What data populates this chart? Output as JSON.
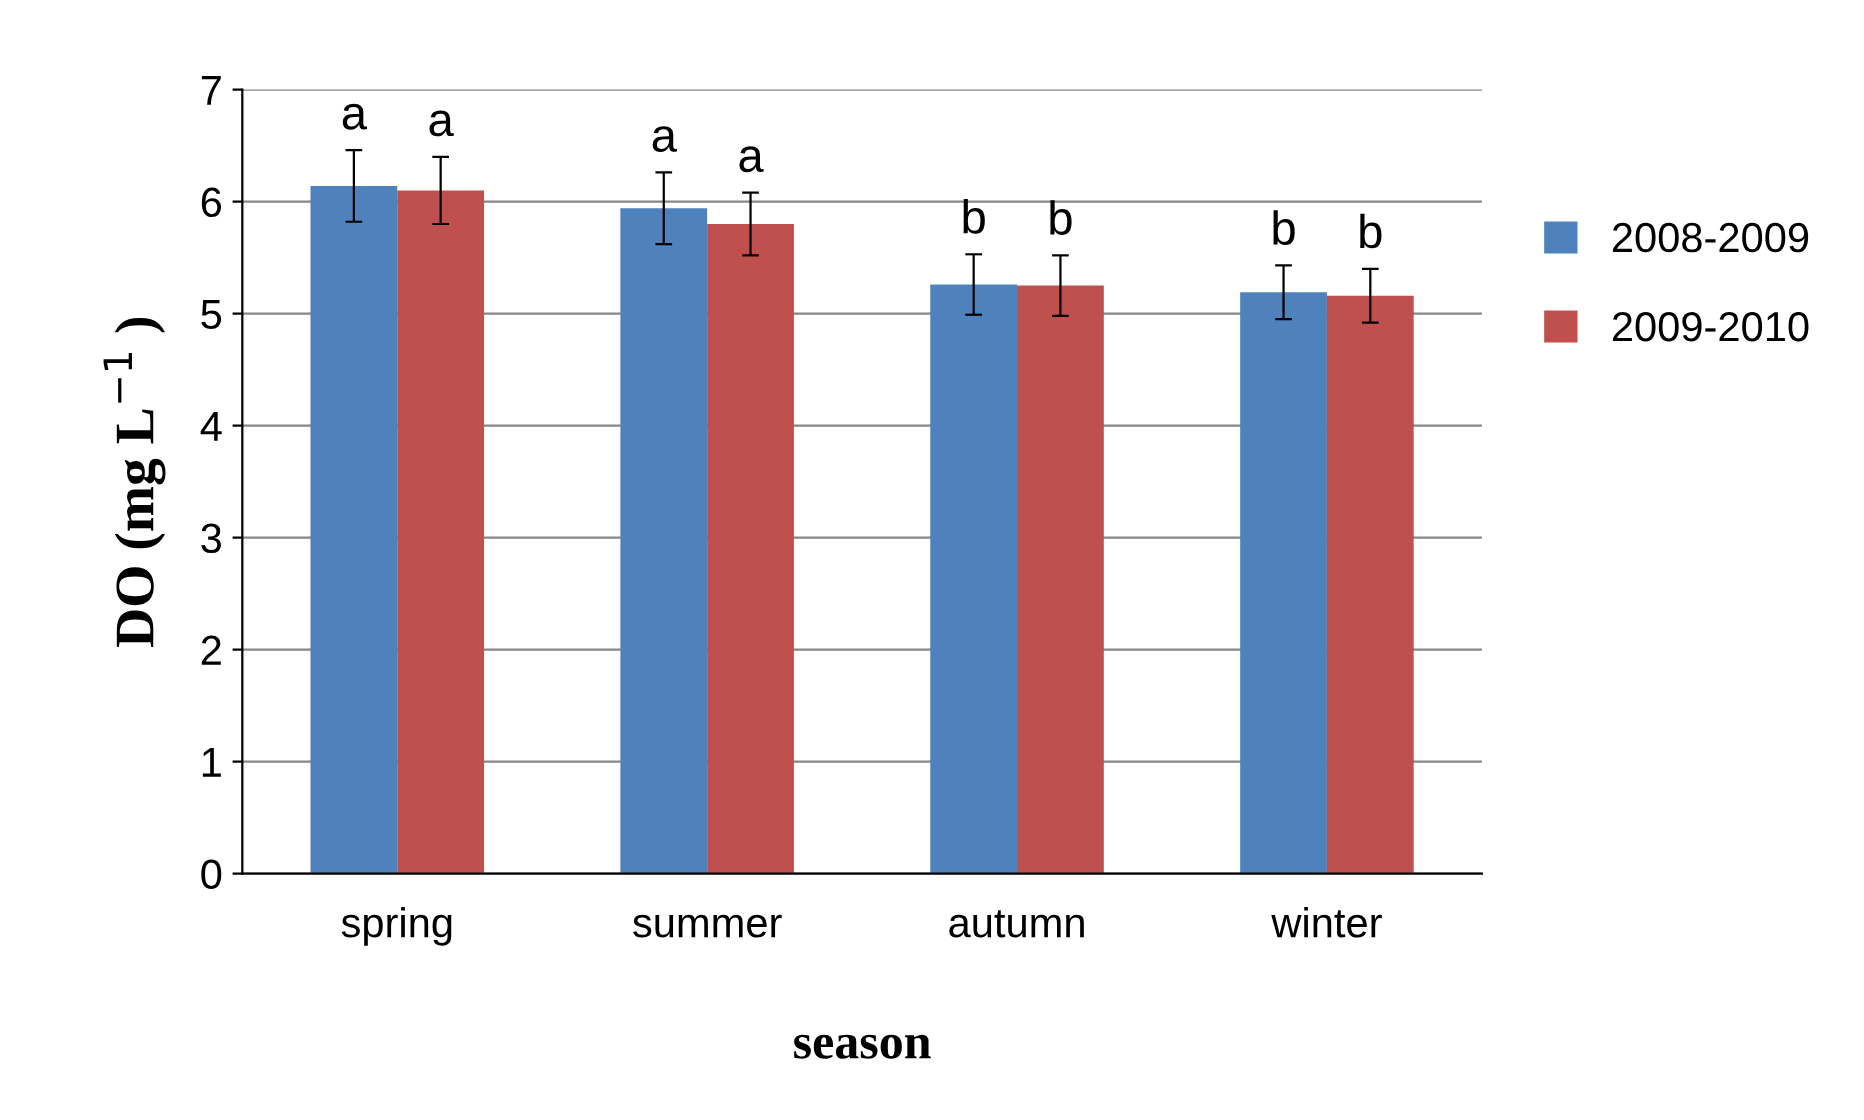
{
  "chart_data": {
    "type": "bar",
    "xlabel": "season",
    "ylabel": "DO (mg L$^{−1}$ )",
    "categories": [
      "spring",
      "summer",
      "autumn",
      "winter"
    ],
    "series": [
      {
        "name": "2008-2009",
        "color": "#4f81bd",
        "values": [
          6.14,
          5.94,
          5.26,
          5.19
        ],
        "errors": [
          0.32,
          0.32,
          0.27,
          0.24
        ]
      },
      {
        "name": "2009-2010",
        "color": "#c0504d",
        "values": [
          6.1,
          5.8,
          5.25,
          5.16
        ],
        "errors": [
          0.3,
          0.28,
          0.27,
          0.24
        ]
      }
    ],
    "annotations": [
      {
        "text": "a",
        "x": "spring",
        "y": 6.14
      },
      {
        "text": "a",
        "x": "spring",
        "y": 6.1
      },
      {
        "text": "a",
        "x": "summer",
        "y": 5.94
      },
      {
        "text": "a",
        "x": "summer",
        "y": 5.8
      },
      {
        "text": "b",
        "x": "autumn",
        "y": 5.26
      },
      {
        "text": "b",
        "x": "autumn",
        "y": 5.25
      },
      {
        "text": "b",
        "x": "winter",
        "y": 5.19
      },
      {
        "text": "b",
        "x": "winter",
        "y": 5.16
      }
    ],
    "ylim": [
      0,
      7
    ],
    "yticks": [
      0,
      1,
      2,
      3,
      4,
      5,
      6,
      7
    ],
    "grid": "y",
    "legend": "right"
  }
}
